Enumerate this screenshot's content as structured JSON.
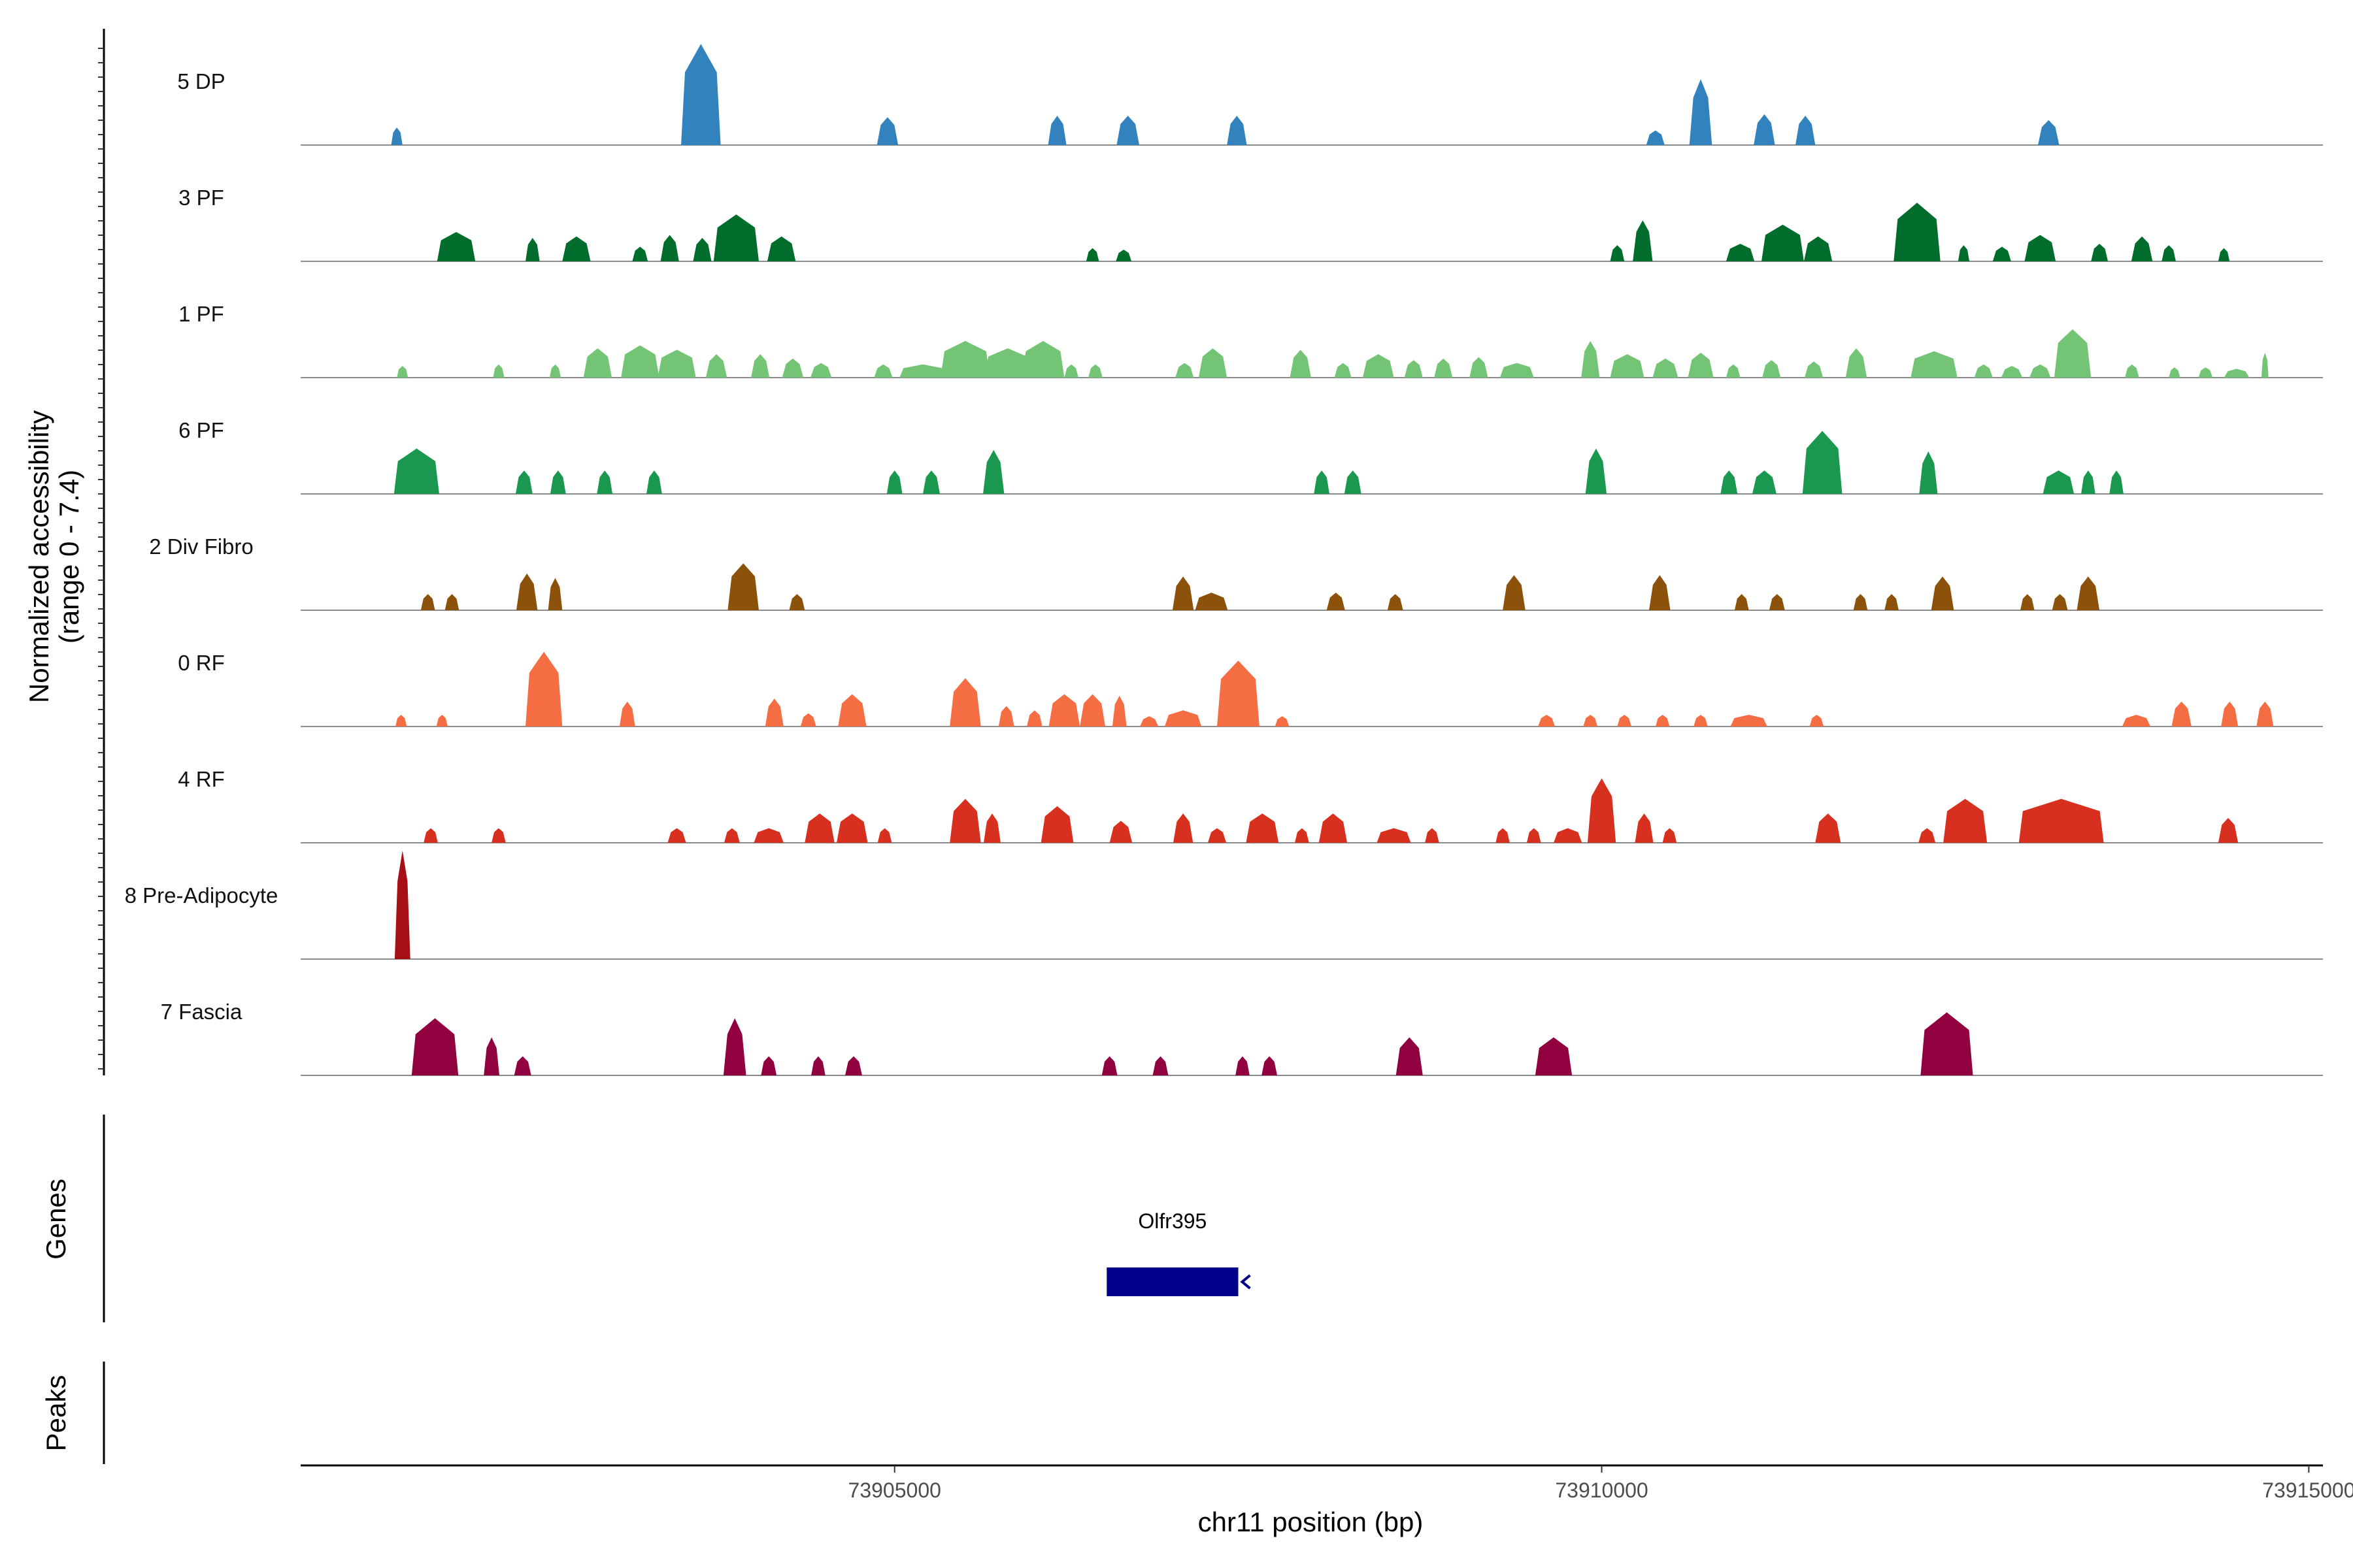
{
  "chart_data": {
    "type": "area",
    "title": "",
    "region_chromosome": "chr11",
    "xlabel": "chr11 position (bp)",
    "ylabel_line1": "Normalized accessibility",
    "ylabel_line2": "(range 0 - 7.4)",
    "y_range": [
      0,
      7.4
    ],
    "x_range": [
      73900800,
      73915100
    ],
    "x_ticks": [
      73905000,
      73910000,
      73915000
    ],
    "x_tick_labels": [
      "73905000",
      "73910000",
      "73915000"
    ],
    "panel_labels": {
      "genes": "Genes",
      "peaks": "Peaks"
    },
    "genes": [
      {
        "name": "Olfr395",
        "start": 73906500,
        "end": 73907430,
        "strand": "-",
        "color": "#00008B"
      }
    ],
    "tracks": [
      {
        "label": "5 DP",
        "color": "#3182BD",
        "peaks": [
          [
            73901480,
            80,
            1.2
          ],
          [
            73903630,
            280,
            6.9
          ],
          [
            73904950,
            150,
            1.9
          ],
          [
            73906150,
            130,
            2.0
          ],
          [
            73906650,
            160,
            2.0
          ],
          [
            73907420,
            140,
            2.0
          ],
          [
            73910380,
            130,
            1.0
          ],
          [
            73910700,
            160,
            4.5
          ],
          [
            73911150,
            150,
            2.1
          ],
          [
            73911440,
            140,
            2.0
          ],
          [
            73913160,
            150,
            1.7
          ]
        ]
      },
      {
        "label": "3 PF",
        "color": "#006D2C",
        "peaks": [
          [
            73901900,
            270,
            2.0
          ],
          [
            73902440,
            100,
            1.6
          ],
          [
            73902750,
            200,
            1.7
          ],
          [
            73903200,
            110,
            1.0
          ],
          [
            73903410,
            130,
            1.8
          ],
          [
            73903640,
            130,
            1.6
          ],
          [
            73903880,
            320,
            3.2
          ],
          [
            73904200,
            200,
            1.7
          ],
          [
            73906400,
            90,
            0.9
          ],
          [
            73906620,
            110,
            0.8
          ],
          [
            73910110,
            100,
            1.1
          ],
          [
            73910290,
            140,
            2.8
          ],
          [
            73910980,
            200,
            1.2
          ],
          [
            73911280,
            300,
            2.5
          ],
          [
            73911530,
            200,
            1.7
          ],
          [
            73912230,
            330,
            4.0
          ],
          [
            73912560,
            80,
            1.1
          ],
          [
            73912830,
            130,
            1.0
          ],
          [
            73913100,
            220,
            1.8
          ],
          [
            73913520,
            120,
            1.2
          ],
          [
            73913820,
            150,
            1.7
          ],
          [
            73914010,
            100,
            1.1
          ],
          [
            73914400,
            80,
            0.9
          ]
        ]
      },
      {
        "label": "1 PF",
        "color": "#74C476",
        "peaks": [
          [
            73901520,
            80,
            0.8
          ],
          [
            73902200,
            80,
            0.9
          ],
          [
            73902600,
            80,
            0.9
          ],
          [
            73902900,
            200,
            2.0
          ],
          [
            73903200,
            270,
            2.2
          ],
          [
            73903460,
            270,
            1.9
          ],
          [
            73903740,
            150,
            1.6
          ],
          [
            73904050,
            130,
            1.6
          ],
          [
            73904280,
            150,
            1.3
          ],
          [
            73904480,
            150,
            1.0
          ],
          [
            73904920,
            130,
            0.9
          ],
          [
            73905200,
            330,
            0.9
          ],
          [
            73905500,
            350,
            2.5
          ],
          [
            73905800,
            330,
            2.0
          ],
          [
            73906050,
            300,
            2.5
          ],
          [
            73906250,
            100,
            0.9
          ],
          [
            73906420,
            100,
            0.9
          ],
          [
            73907050,
            130,
            1.0
          ],
          [
            73907250,
            200,
            2.0
          ],
          [
            73907870,
            150,
            1.9
          ],
          [
            73908170,
            120,
            1.0
          ],
          [
            73908420,
            220,
            1.6
          ],
          [
            73908670,
            130,
            1.2
          ],
          [
            73908880,
            130,
            1.3
          ],
          [
            73909130,
            130,
            1.4
          ],
          [
            73909400,
            240,
            1.0
          ],
          [
            73909920,
            130,
            2.5
          ],
          [
            73910180,
            240,
            1.6
          ],
          [
            73910450,
            180,
            1.3
          ],
          [
            73910700,
            180,
            1.7
          ],
          [
            73910930,
            100,
            0.9
          ],
          [
            73911200,
            130,
            1.2
          ],
          [
            73911500,
            130,
            1.1
          ],
          [
            73911800,
            150,
            2.0
          ],
          [
            73912350,
            330,
            1.8
          ],
          [
            73912700,
            130,
            0.9
          ],
          [
            73912900,
            150,
            0.8
          ],
          [
            73913100,
            150,
            0.9
          ],
          [
            73913330,
            260,
            3.3
          ],
          [
            73913750,
            100,
            0.9
          ],
          [
            73914050,
            80,
            0.7
          ],
          [
            73914270,
            100,
            0.7
          ],
          [
            73914490,
            180,
            0.6
          ],
          [
            73914690,
            50,
            1.7
          ]
        ]
      },
      {
        "label": "6 PF",
        "color": "#1A9850",
        "peaks": [
          [
            73901620,
            320,
            3.1
          ],
          [
            73902380,
            120,
            1.6
          ],
          [
            73902620,
            110,
            1.6
          ],
          [
            73902950,
            110,
            1.6
          ],
          [
            73903300,
            110,
            1.6
          ],
          [
            73905000,
            110,
            1.6
          ],
          [
            73905260,
            120,
            1.6
          ],
          [
            73905700,
            150,
            3.0
          ],
          [
            73908020,
            110,
            1.6
          ],
          [
            73908240,
            120,
            1.6
          ],
          [
            73909960,
            150,
            3.1
          ],
          [
            73910900,
            120,
            1.6
          ],
          [
            73911150,
            170,
            1.6
          ],
          [
            73911560,
            280,
            4.3
          ],
          [
            73912310,
            130,
            2.9
          ],
          [
            73913230,
            220,
            1.6
          ],
          [
            73913440,
            100,
            1.6
          ],
          [
            73913640,
            100,
            1.6
          ]
        ]
      },
      {
        "label": "2 Div Fibro",
        "color": "#8C510A",
        "peaks": [
          [
            73901700,
            100,
            1.1
          ],
          [
            73901870,
            100,
            1.1
          ],
          [
            73902400,
            150,
            2.5
          ],
          [
            73902600,
            100,
            2.2
          ],
          [
            73903930,
            220,
            3.2
          ],
          [
            73904310,
            110,
            1.1
          ],
          [
            73907040,
            150,
            2.3
          ],
          [
            73907240,
            230,
            1.2
          ],
          [
            73908120,
            130,
            1.2
          ],
          [
            73908540,
            110,
            1.1
          ],
          [
            73909380,
            160,
            2.4
          ],
          [
            73910410,
            150,
            2.4
          ],
          [
            73910990,
            100,
            1.1
          ],
          [
            73911240,
            110,
            1.1
          ],
          [
            73911830,
            100,
            1.1
          ],
          [
            73912050,
            100,
            1.1
          ],
          [
            73912410,
            160,
            2.3
          ],
          [
            73913010,
            100,
            1.1
          ],
          [
            73913240,
            110,
            1.1
          ],
          [
            73913440,
            160,
            2.3
          ]
        ]
      },
      {
        "label": "0 RF",
        "color": "#F46D43",
        "peaks": [
          [
            73901510,
            80,
            0.8
          ],
          [
            73901800,
            80,
            0.8
          ],
          [
            73902520,
            260,
            5.1
          ],
          [
            73903110,
            110,
            1.7
          ],
          [
            73904150,
            130,
            1.9
          ],
          [
            73904390,
            110,
            0.9
          ],
          [
            73904700,
            200,
            2.2
          ],
          [
            73905500,
            220,
            3.3
          ],
          [
            73905790,
            110,
            1.4
          ],
          [
            73905990,
            110,
            1.1
          ],
          [
            73906200,
            220,
            2.2
          ],
          [
            73906400,
            180,
            2.2
          ],
          [
            73906590,
            100,
            2.1
          ],
          [
            73906800,
            130,
            0.7
          ],
          [
            73907040,
            260,
            1.1
          ],
          [
            73907430,
            300,
            4.5
          ],
          [
            73907740,
            100,
            0.7
          ],
          [
            73909610,
            120,
            0.8
          ],
          [
            73909920,
            100,
            0.8
          ],
          [
            73910160,
            100,
            0.8
          ],
          [
            73910430,
            100,
            0.8
          ],
          [
            73910700,
            100,
            0.8
          ],
          [
            73911040,
            260,
            0.8
          ],
          [
            73911520,
            100,
            0.8
          ],
          [
            73913780,
            200,
            0.8
          ],
          [
            73914100,
            140,
            1.7
          ],
          [
            73914440,
            120,
            1.7
          ],
          [
            73914690,
            120,
            1.7
          ]
        ]
      },
      {
        "label": "4 RF",
        "color": "#D7301F",
        "peaks": [
          [
            73901720,
            100,
            1.0
          ],
          [
            73902200,
            100,
            1.0
          ],
          [
            73903460,
            130,
            1.0
          ],
          [
            73903850,
            110,
            1.0
          ],
          [
            73904110,
            210,
            1.0
          ],
          [
            73904470,
            210,
            2.0
          ],
          [
            73904700,
            220,
            2.0
          ],
          [
            73904930,
            100,
            1.0
          ],
          [
            73905500,
            220,
            3.0
          ],
          [
            73905690,
            120,
            2.0
          ],
          [
            73906150,
            230,
            2.5
          ],
          [
            73906600,
            160,
            1.5
          ],
          [
            73907040,
            140,
            2.0
          ],
          [
            73907280,
            130,
            1.0
          ],
          [
            73907600,
            230,
            2.0
          ],
          [
            73907880,
            100,
            1.0
          ],
          [
            73908100,
            200,
            2.0
          ],
          [
            73908530,
            240,
            1.0
          ],
          [
            73908800,
            100,
            1.0
          ],
          [
            73909300,
            100,
            1.0
          ],
          [
            73909520,
            100,
            1.0
          ],
          [
            73909760,
            200,
            1.0
          ],
          [
            73910000,
            200,
            4.4
          ],
          [
            73910300,
            130,
            2.0
          ],
          [
            73910480,
            100,
            1.0
          ],
          [
            73911600,
            180,
            2.0
          ],
          [
            73912300,
            120,
            1.0
          ],
          [
            73912570,
            310,
            3.0
          ],
          [
            73913250,
            600,
            3.0
          ],
          [
            73914430,
            140,
            1.7
          ]
        ]
      },
      {
        "label": "8 Pre-Adipocyte",
        "color": "#A50F15",
        "peaks": [
          [
            73901520,
            110,
            7.4
          ]
        ]
      },
      {
        "label": "7 Fascia",
        "color": "#91003F",
        "peaks": [
          [
            73901750,
            330,
            3.9
          ],
          [
            73902150,
            110,
            2.6
          ],
          [
            73902370,
            120,
            1.3
          ],
          [
            73903870,
            160,
            3.9
          ],
          [
            73904110,
            110,
            1.3
          ],
          [
            73904460,
            100,
            1.3
          ],
          [
            73904710,
            120,
            1.3
          ],
          [
            73906520,
            110,
            1.3
          ],
          [
            73906880,
            110,
            1.3
          ],
          [
            73907460,
            100,
            1.3
          ],
          [
            73907650,
            110,
            1.3
          ],
          [
            73908640,
            190,
            2.6
          ],
          [
            73909660,
            260,
            2.6
          ],
          [
            73912440,
            370,
            4.3
          ]
        ]
      }
    ]
  }
}
